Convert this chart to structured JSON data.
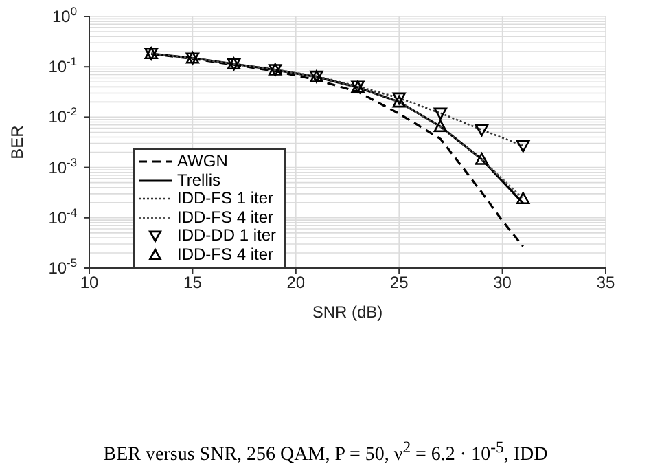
{
  "chart_data": {
    "type": "line",
    "xlabel": "SNR (dB)",
    "ylabel": "BER",
    "x": [
      13,
      15,
      17,
      19,
      21,
      23,
      25,
      27,
      29,
      31
    ],
    "series": [
      {
        "name": "AWGN",
        "color": "#000000",
        "line_style": "dashed",
        "marker": "none",
        "x": [
          13,
          15,
          17,
          19,
          21,
          23,
          25,
          27,
          28,
          29,
          30,
          31
        ],
        "values": [
          0.18,
          0.145,
          0.11,
          0.082,
          0.055,
          0.032,
          0.0117,
          0.0037,
          0.0011,
          0.00032,
          8.7e-05,
          2.7e-05
        ]
      },
      {
        "name": "Trellis",
        "color": "#000000",
        "line_style": "solid",
        "marker": "none",
        "values": [
          0.183,
          0.149,
          0.114,
          0.087,
          0.063,
          0.039,
          0.02,
          0.0065,
          0.00145,
          0.000195
        ]
      },
      {
        "name": "IDD-FS 1 iter",
        "color": "#333333",
        "line_style": "dotted",
        "marker": "none",
        "values": [
          0.183,
          0.149,
          0.114,
          0.088,
          0.065,
          0.041,
          0.024,
          0.012,
          0.0056,
          0.0027
        ]
      },
      {
        "name": "IDD-FS 4 iter",
        "color": "#555555",
        "line_style": "dotted",
        "marker": "none",
        "values": [
          0.183,
          0.149,
          0.114,
          0.087,
          0.063,
          0.039,
          0.02,
          0.0065,
          0.00145,
          0.00024
        ]
      },
      {
        "name": "IDD-DD 1 iter",
        "type": "scatter",
        "color": "#000000",
        "marker": "triangle-down",
        "values": [
          0.183,
          0.149,
          0.114,
          0.088,
          0.065,
          0.041,
          0.024,
          0.012,
          0.0056,
          0.0027
        ]
      },
      {
        "name": "IDD-FS 4 iter",
        "type": "scatter",
        "color": "#000000",
        "marker": "triangle",
        "values": [
          0.183,
          0.149,
          0.114,
          0.087,
          0.063,
          0.039,
          0.02,
          0.0065,
          0.00145,
          0.00024
        ]
      }
    ],
    "log": "y",
    "xlim": [
      10,
      35
    ],
    "xticks": [
      10,
      15,
      20,
      25,
      30,
      35
    ],
    "ylim": [
      1e-05,
      1
    ],
    "yticks": [
      {
        "value": 1e-05,
        "label": "10$^{-5}$"
      },
      {
        "value": 0.0001,
        "label": "10$^{-4}$"
      },
      {
        "value": 0.001,
        "label": "10$^{-3}$"
      },
      {
        "value": 0.01,
        "label": "10$^{-2}$"
      },
      {
        "value": 0.1,
        "label": "10$^{-1}$"
      },
      {
        "value": 1,
        "label": "10$^{0}$"
      }
    ],
    "grid": true,
    "legend": "left",
    "annotations": [
      "BER versus SNR, 256 QAM, P = 50, ν$^{2}$ = 6.2 · 10$^{-5}$, IDD"
    ]
  }
}
